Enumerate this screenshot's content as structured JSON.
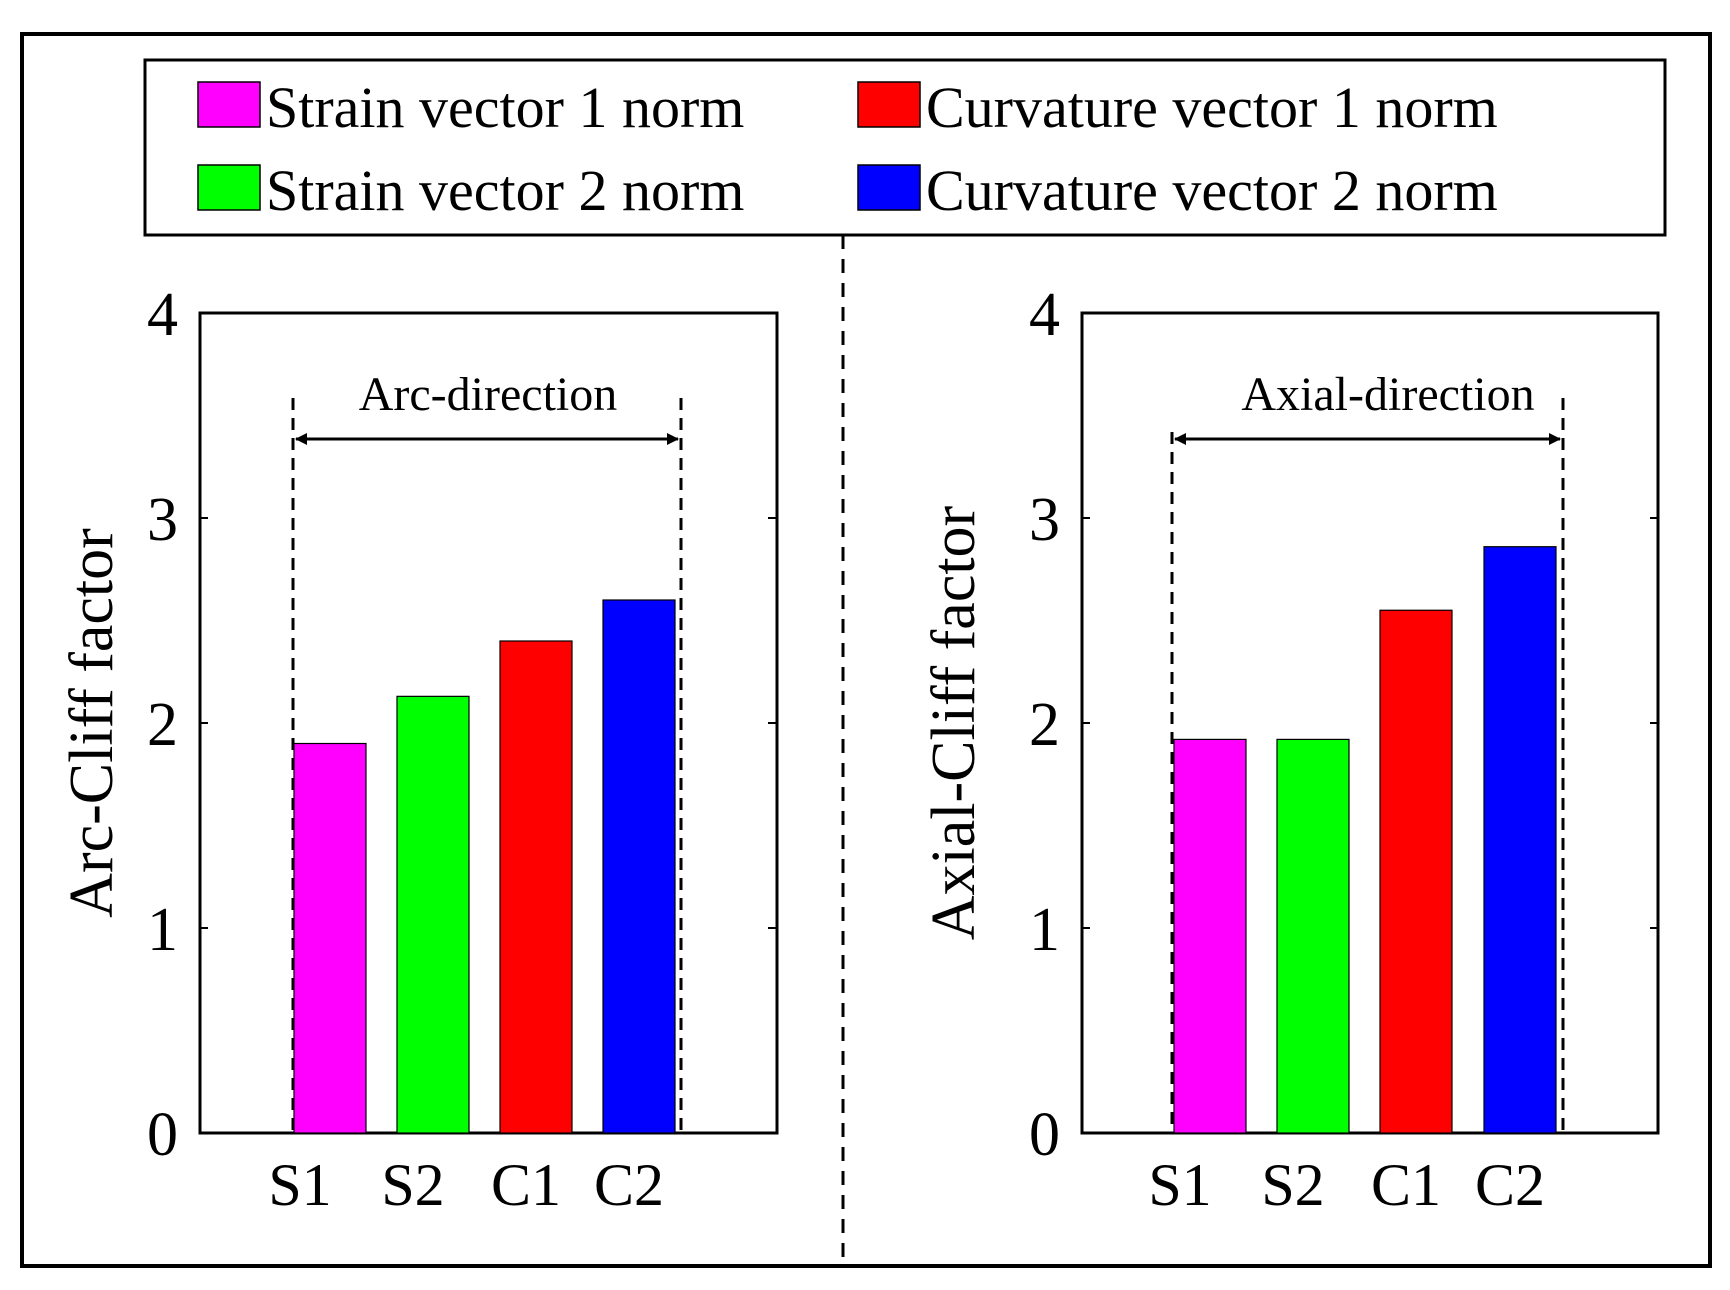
{
  "legend": {
    "items": [
      {
        "key": "S1",
        "label": "Strain vector 1 norm",
        "color": "#ff00ff"
      },
      {
        "key": "C1",
        "label": "Curvature vector 1 norm",
        "color": "#ff0000"
      },
      {
        "key": "S2",
        "label": "Strain vector 2 norm",
        "color": "#00ff00"
      },
      {
        "key": "C2",
        "label": "Curvature vector 2 norm",
        "color": "#0000ff"
      }
    ]
  },
  "chart_data": [
    {
      "type": "bar",
      "title": "",
      "annotation": "Arc-direction",
      "xlabel": "",
      "ylabel": "Arc-Cliff factor",
      "categories": [
        "S1",
        "S2",
        "C1",
        "C2"
      ],
      "values": [
        1.9,
        2.13,
        2.4,
        2.6
      ],
      "colors": [
        "#ff00ff",
        "#00ff00",
        "#ff0000",
        "#0000ff"
      ],
      "ylim": [
        0,
        4
      ],
      "yticks": [
        "0",
        "1",
        "2",
        "3",
        "4"
      ],
      "grid": false
    },
    {
      "type": "bar",
      "title": "",
      "annotation": "Axial-direction",
      "xlabel": "",
      "ylabel": "Axial-Cliff factor",
      "categories": [
        "S1",
        "S2",
        "C1",
        "C2"
      ],
      "values": [
        1.92,
        1.92,
        2.55,
        2.86
      ],
      "colors": [
        "#ff00ff",
        "#00ff00",
        "#ff0000",
        "#0000ff"
      ],
      "ylim": [
        0,
        4
      ],
      "yticks": [
        "0",
        "1",
        "2",
        "3",
        "4"
      ],
      "grid": false
    }
  ]
}
